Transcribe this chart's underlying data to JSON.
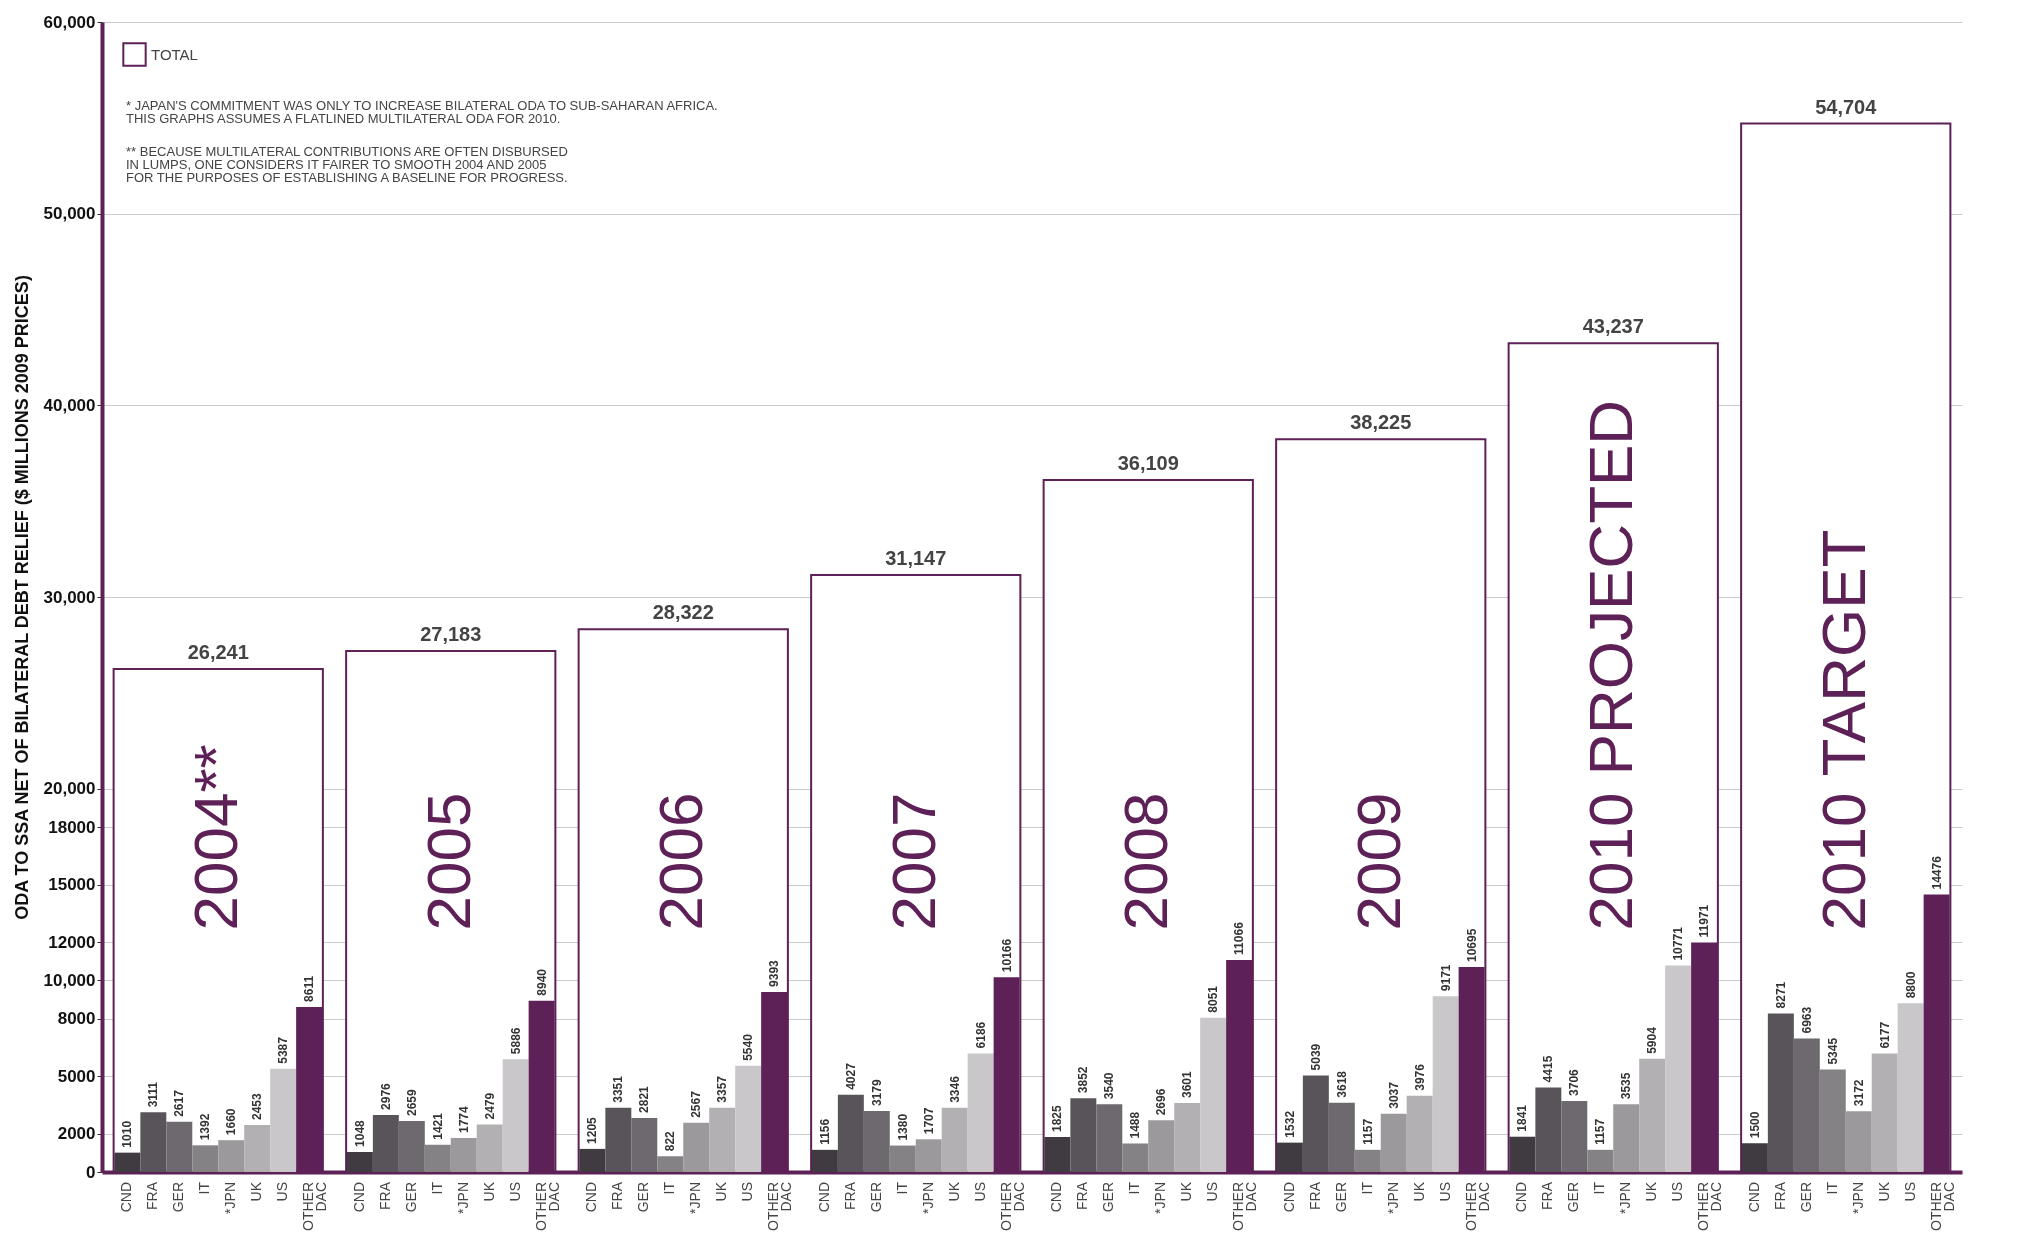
{
  "chart_data": {
    "type": "bar",
    "ylabel": "ODA TO SSA NET OF BILATERAL DEBT RELIEF ($ MILLIONS 2009 PRICES)",
    "categories": [
      "2004**",
      "2005",
      "2006",
      "2007",
      "2008",
      "2009",
      "2010 PROJECTED",
      "2010 TARGET"
    ],
    "series": [
      {
        "name": "TOTAL",
        "color": "#5e2157",
        "values": [
          26241,
          27183,
          28322,
          31147,
          36109,
          38225,
          43237,
          54704
        ],
        "value_labels": [
          "26,241",
          "27,183",
          "28,322",
          "31,147",
          "36,109",
          "38,225",
          "43,237",
          "54,704"
        ]
      },
      {
        "name": "CND",
        "color": "#3f3b40",
        "values": [
          1010,
          1048,
          1205,
          1156,
          1825,
          1532,
          1841,
          1500
        ]
      },
      {
        "name": "FRA",
        "color": "#58545a",
        "values": [
          3111,
          2976,
          3351,
          4027,
          3852,
          5039,
          4415,
          8271
        ]
      },
      {
        "name": "GER",
        "color": "#6d696f",
        "values": [
          2617,
          2659,
          2821,
          3179,
          3540,
          3618,
          3706,
          6963
        ]
      },
      {
        "name": "IT",
        "color": "#858286",
        "values": [
          1392,
          1421,
          822,
          1380,
          1488,
          1157,
          1157,
          5345
        ]
      },
      {
        "name": "*JPN",
        "color": "#9c999d",
        "values": [
          1660,
          1774,
          2567,
          1707,
          2696,
          3037,
          3535,
          3172
        ]
      },
      {
        "name": "UK",
        "color": "#b3b0b4",
        "values": [
          2453,
          2479,
          3357,
          3346,
          3601,
          3976,
          5904,
          6177
        ]
      },
      {
        "name": "US",
        "color": "#c9c7ca",
        "values": [
          5387,
          5886,
          5540,
          6186,
          8051,
          9171,
          10771,
          8800
        ]
      },
      {
        "name": "OTHER DAC",
        "color": "#5e2157",
        "values": [
          8611,
          8940,
          9393,
          10166,
          11066,
          10695,
          11971,
          14476
        ]
      }
    ],
    "data_labels": true,
    "ylim": [
      0,
      60000
    ],
    "yticks": [
      0,
      {
        "value": 2000,
        "label": "2000"
      },
      {
        "value": 5000,
        "label": "5000"
      },
      {
        "value": 8000,
        "label": "8000"
      },
      {
        "value": 10000,
        "label": "10,000"
      },
      {
        "value": 12000,
        "label": "12000"
      },
      {
        "value": 15000,
        "label": "15000"
      },
      {
        "value": 18000,
        "label": "18000"
      },
      {
        "value": 20000,
        "label": "20,000"
      },
      {
        "value": 30000,
        "label": "30,000"
      },
      {
        "value": 40000,
        "label": "40,000"
      },
      {
        "value": 50000,
        "label": "50,000"
      },
      {
        "value": 60000,
        "label": "60,000"
      }
    ],
    "grid": "y",
    "legend": "top left",
    "annotations": [
      "* JAPAN'S COMMITMENT WAS ONLY TO INCREASE BILATERAL ODA TO SUB-SAHARAN AFRICA.\nTHIS GRAPHS ASSUMES A FLATLINED MULTILATERAL ODA FOR 2010.",
      "** BECAUSE MULTILATERAL CONTRIBUTIONS ARE OFTEN DISBURSED\nIN LUMPS, ONE CONSIDERS IT FAIRER TO SMOOTH 2004 AND 2005\nFOR THE PURPOSES OF ESTABLISHING A BASELINE FOR PROGRESS."
    ]
  }
}
